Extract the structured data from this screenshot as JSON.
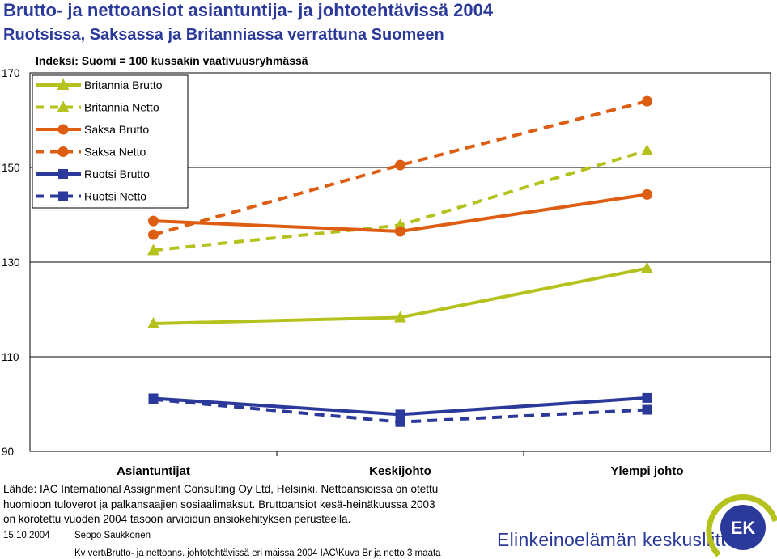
{
  "header": {
    "title_line1": "Brutto- ja nettoansiot asiantuntija- ja johtotehtävissä 2004",
    "title_line2": "Ruotsissa, Saksassa ja Britanniassa verrattuna Suomeen"
  },
  "chart_data": {
    "type": "line",
    "subtitle": "Indeksi: Suomi = 100 kussakin vaativuusryhmässä",
    "categories": [
      "Asiantuntijat",
      "Keskijohto",
      "Ylempi johto"
    ],
    "y_ticks": [
      "170",
      "150",
      "130",
      "110",
      "90"
    ],
    "y_tick_values": [
      170,
      150,
      130,
      110,
      90
    ],
    "ylim": [
      90,
      170
    ],
    "grid": true,
    "legend_position": "top-left",
    "series": [
      {
        "name": "Britannia Brutto",
        "values": [
          117,
          118.3,
          128.7
        ],
        "color": "#b5c21e",
        "dashed": false,
        "marker": "triangle"
      },
      {
        "name": "Britannia Netto",
        "values": [
          132.5,
          137.8,
          153.6
        ],
        "color": "#b5c21e",
        "dashed": true,
        "marker": "triangle"
      },
      {
        "name": "Saksa Brutto",
        "values": [
          138.7,
          136.5,
          144.3
        ],
        "color": "#dd5e12",
        "dashed": false,
        "marker": "circle"
      },
      {
        "name": "Saksa Netto",
        "values": [
          135.8,
          150.5,
          164
        ],
        "color": "#dd5e12",
        "dashed": true,
        "marker": "circle"
      },
      {
        "name": "Ruotsi Brutto",
        "values": [
          101.2,
          97.8,
          101.3
        ],
        "color": "#2b3a9a",
        "dashed": false,
        "marker": "square"
      },
      {
        "name": "Ruotsi Netto",
        "values": [
          101,
          96.2,
          98.8
        ],
        "color": "#2b3a9a",
        "dashed": true,
        "marker": "square"
      }
    ]
  },
  "source": {
    "line1": "Lähde: IAC International Assignment Consulting Oy Ltd, Helsinki. Nettoansioissa on otettu",
    "line2": "huomioon tuloverot ja palkansaajien sosiaalimaksut. Bruttoansiot kesä-heinäkuussa 2003",
    "line3": "on korotettu vuoden 2004 tasoon arvioidun ansiokehityksen perusteella."
  },
  "footer": {
    "date": "15.10.2004",
    "author": "Seppo Saukkonen",
    "path": "Kv vert\\Brutto- ja nettoans. johtotehtävissä eri maissa 2004 IAC\\Kuva Br ja netto 3 maata",
    "org_name": "Elinkeinoelämän keskusliitto",
    "logo_text": "EK"
  }
}
